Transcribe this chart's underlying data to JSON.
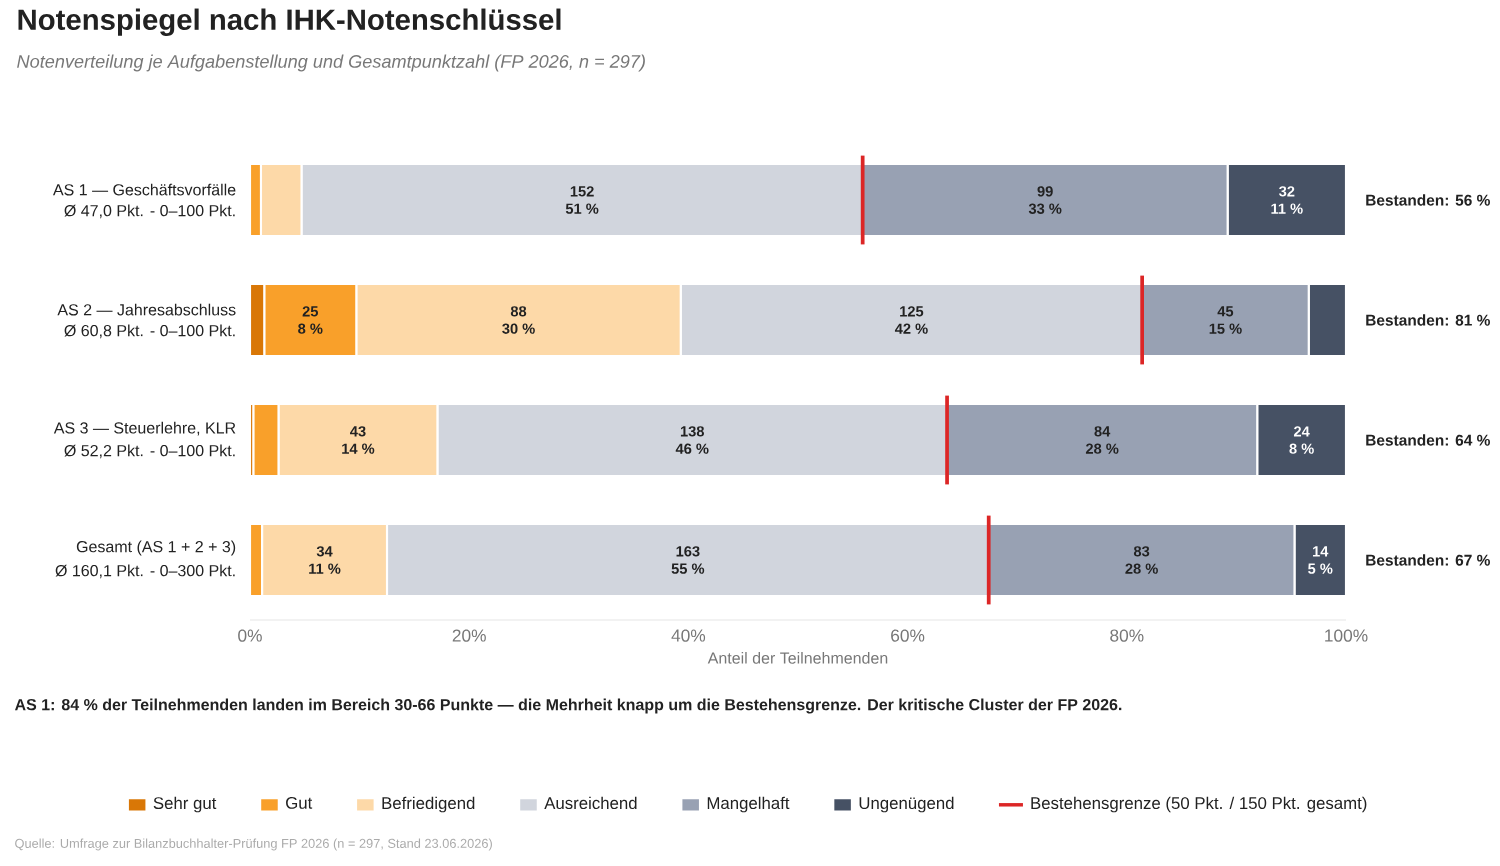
{
  "chart_data": {
    "type": "bar",
    "orientation": "horizontal",
    "stacked": true,
    "title": "Notenspiegel nach IHK-Notenschlüssel",
    "subtitle": "Notenverteilung je Aufgabenstellung und Gesamtpunktzahl (FP 2026, n = 297)",
    "xlabel": "Anteil der Teilnehmenden",
    "categories": [
      "AS 1 — Geschäftsvorfälle",
      "AS 2 — Jahresabschluss",
      "AS 3 — Steuerlehre, KLR",
      "Gesamt (AS 1 + 2 + 3)"
    ],
    "xlim": [
      0,
      100
    ],
    "xticks": [
      {
        "value": 0,
        "label": "0%"
      },
      {
        "value": 20,
        "label": "20%"
      },
      {
        "value": 40,
        "label": "40%"
      },
      {
        "value": 60,
        "label": "60%"
      },
      {
        "value": 80,
        "label": "80%"
      },
      {
        "value": 100,
        "label": "100%"
      }
    ],
    "legend": "bottom",
    "series": [
      {
        "name": "Sehr gut",
        "color": "#d97706",
        "values": [
          0,
          1.3,
          0.3,
          0
        ],
        "value_labels": [
          null,
          null,
          null,
          null
        ]
      },
      {
        "name": "Gut",
        "color": "#f9a02a",
        "values": [
          1.0,
          8.4,
          2.3,
          1.1
        ],
        "value_labels": [
          null,
          [
            "25",
            "8 %"
          ],
          null,
          null
        ]
      },
      {
        "name": "Befriedigend",
        "color": "#fdd9a8",
        "values": [
          3.7,
          29.6,
          14.5,
          11.4
        ],
        "value_labels": [
          null,
          [
            "88",
            "30 %"
          ],
          [
            "43",
            "14 %"
          ],
          [
            "34",
            "11 %"
          ]
        ]
      },
      {
        "name": "Ausreichend",
        "color": "#d1d5dd",
        "values": [
          51.2,
          42.1,
          46.5,
          54.9
        ],
        "value_labels": [
          [
            "152",
            "51 %"
          ],
          [
            "125",
            "42 %"
          ],
          [
            "138",
            "46 %"
          ],
          [
            "163",
            "55 %"
          ]
        ]
      },
      {
        "name": "Mangelhaft",
        "color": "#98a1b3",
        "values": [
          33.3,
          15.2,
          28.3,
          27.9
        ],
        "value_labels": [
          [
            "99",
            "33 %"
          ],
          [
            "45",
            "15 %"
          ],
          [
            "84",
            "28 %"
          ],
          [
            "83",
            "28 %"
          ]
        ]
      },
      {
        "name": "Ungenügend",
        "color": "#465164",
        "values": [
          10.8,
          3.4,
          8.1,
          4.7
        ],
        "value_labels": [
          [
            "32",
            "11 %"
          ],
          null,
          [
            "24",
            "8 %"
          ],
          [
            "14",
            "5 %"
          ]
        ]
      }
    ],
    "ref_lines": [
      {
        "axis": "x",
        "value": 55.9,
        "color": "#dc2626",
        "label": "Bestehensgrenze (50 Pkt. / 150 Pkt. gesamt)"
      },
      {
        "axis": "x",
        "value": 81.4,
        "color": "#dc2626"
      },
      {
        "axis": "x",
        "value": 63.6,
        "color": "#dc2626"
      },
      {
        "axis": "x",
        "value": 67.4,
        "color": "#dc2626"
      }
    ],
    "annotations": [
      "Ø 47,0 Pkt. - 0–100 Pkt.",
      "Ø 60,8 Pkt. - 0–100 Pkt.",
      "Ø 52,2 Pkt. - 0–100 Pkt.",
      "Ø 160,1 Pkt. - 0–300 Pkt.",
      "Bestanden: 56 %",
      "Bestanden: 81 %",
      "Bestanden: 64 %",
      "Bestanden: 67 %",
      "AS 1: 84 % der Teilnehmenden landen im Bereich 30-66 Punkte — die Mehrheit knapp um die Bestehensgrenze. Der kritische Cluster der FP 2026.",
      "Quelle: Umfrage zur Bilanzbuchhalter-Prüfung FP 2026 (n = 297, Stand 23.06.2026)"
    ]
  }
}
